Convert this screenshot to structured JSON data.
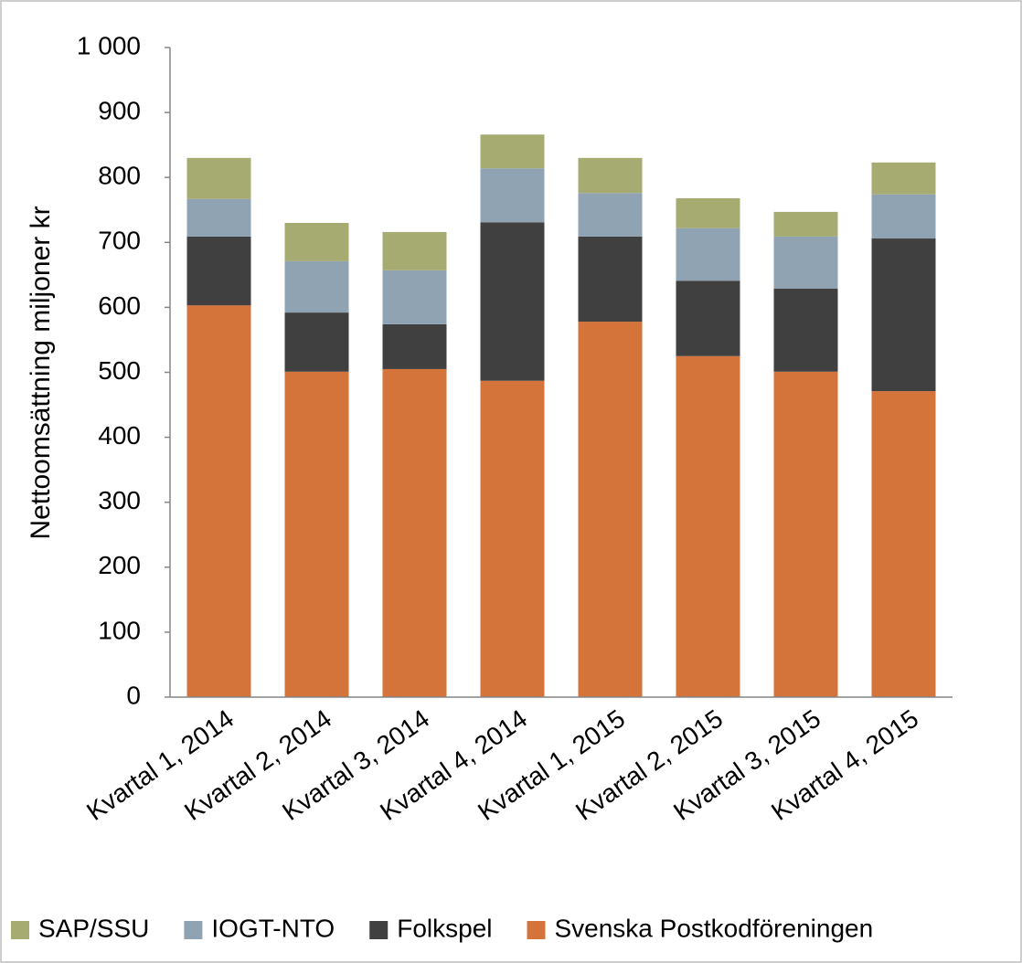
{
  "chart_data": {
    "type": "stacked_bar",
    "y_label": "Nettoomsättning miljoner kr",
    "categories": [
      "Kvartal 1, 2014",
      "Kvartal 2, 2014",
      "Kvartal 3, 2014",
      "Kvartal 4, 2014",
      "Kvartal 1, 2015",
      "Kvartal 2, 2015",
      "Kvartal 3, 2015",
      "Kvartal 4, 2015"
    ],
    "series": [
      {
        "name": "Svenska Postkodföreningen",
        "color": "#d4733a",
        "values": [
          603,
          501,
          505,
          487,
          578,
          525,
          501,
          471
        ]
      },
      {
        "name": "Folkspel",
        "color": "#404040",
        "values": [
          106,
          91,
          69,
          244,
          131,
          116,
          128,
          235
        ]
      },
      {
        "name": "IOGT-NTO",
        "color": "#8fa3b3",
        "values": [
          58,
          79,
          83,
          83,
          67,
          81,
          80,
          68
        ]
      },
      {
        "name": "SAP/SSU",
        "color": "#a6ab72",
        "values": [
          63,
          59,
          59,
          52,
          54,
          46,
          38,
          49
        ]
      }
    ],
    "ylim": [
      0,
      1000
    ],
    "yticks": [
      0,
      100,
      200,
      300,
      400,
      500,
      600,
      700,
      800,
      900,
      {
        "value": 1000,
        "label": "1 000"
      }
    ],
    "grid": false,
    "legend": "bottom"
  }
}
